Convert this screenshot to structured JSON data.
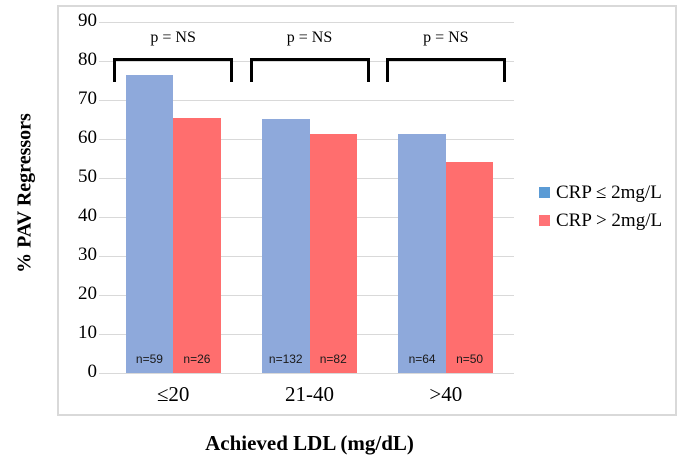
{
  "figure": {
    "background": "#FFFFFF",
    "border_color": "#D9D9D9"
  },
  "chart_data": {
    "type": "bar",
    "title": "",
    "xlabel": "Achieved LDL (mg/dL)",
    "ylabel": "% PAV Regressors",
    "categories": [
      "≤20",
      "21-40",
      ">40"
    ],
    "series": [
      {
        "name": "CRP ≤ 2mg/L",
        "color": "#8EA9DB",
        "legend_color": "#5B9BD5",
        "values": [
          76.3,
          65.2,
          61.3
        ],
        "counts": [
          "n=59",
          "n=132",
          "n=64"
        ]
      },
      {
        "name": "CRP > 2mg/L",
        "color": "#FF6E6E",
        "legend_color": "#FF7276",
        "values": [
          65.4,
          61.2,
          54.2
        ],
        "counts": [
          "n=26",
          "n=82",
          "n=50"
        ]
      }
    ],
    "significance": [
      {
        "group": "≤20",
        "label": "p = NS"
      },
      {
        "group": "21-40",
        "label": "p = NS"
      },
      {
        "group": ">40",
        "label": "p = NS"
      }
    ],
    "ylim": [
      0,
      90
    ],
    "yticks": [
      0,
      10,
      20,
      30,
      40,
      50,
      60,
      70,
      80,
      90
    ],
    "grid": true,
    "gridline_color": "#D9D9D9",
    "bracket_color": "#000000",
    "legend_position": "right"
  }
}
